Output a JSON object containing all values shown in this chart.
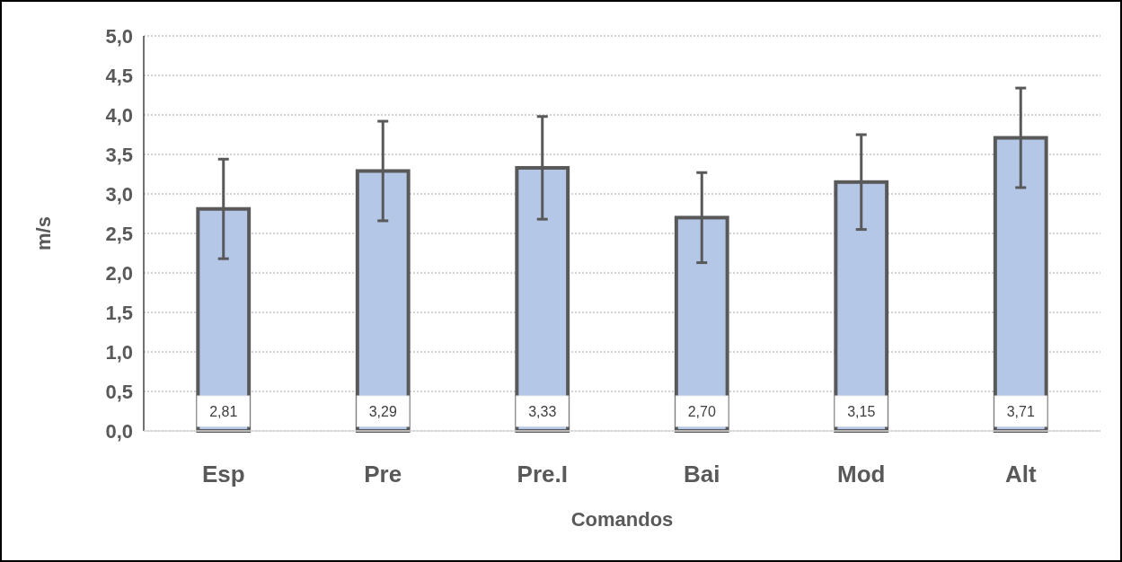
{
  "chart_data": {
    "type": "bar",
    "xlabel": "Comandos",
    "ylabel": "m/s",
    "categories": [
      "Esp",
      "Pre",
      "Pre.I",
      "Bai",
      "Mod",
      "Alt"
    ],
    "values": [
      2.81,
      3.29,
      3.33,
      2.7,
      3.15,
      3.71
    ],
    "errors": [
      0.63,
      0.63,
      0.65,
      0.57,
      0.6,
      0.63
    ],
    "value_labels": [
      "2,81",
      "3,29",
      "3,33",
      "2,70",
      "3,15",
      "3,71"
    ],
    "color": "#b4c7e7",
    "ylim": [
      0,
      5
    ],
    "yticks": [
      {
        "value": 0,
        "label": "0,0"
      },
      {
        "value": 0.5,
        "label": "0,5"
      },
      {
        "value": 1,
        "label": "1,0"
      },
      {
        "value": 1.5,
        "label": "1,5"
      },
      {
        "value": 2,
        "label": "2,0"
      },
      {
        "value": 2.5,
        "label": "2,5"
      },
      {
        "value": 3,
        "label": "3,0"
      },
      {
        "value": 3.5,
        "label": "3,5"
      },
      {
        "value": 4,
        "label": "4,0"
      },
      {
        "value": 4.5,
        "label": "4,5"
      },
      {
        "value": 5,
        "label": "5,0"
      }
    ],
    "grid": "y"
  }
}
